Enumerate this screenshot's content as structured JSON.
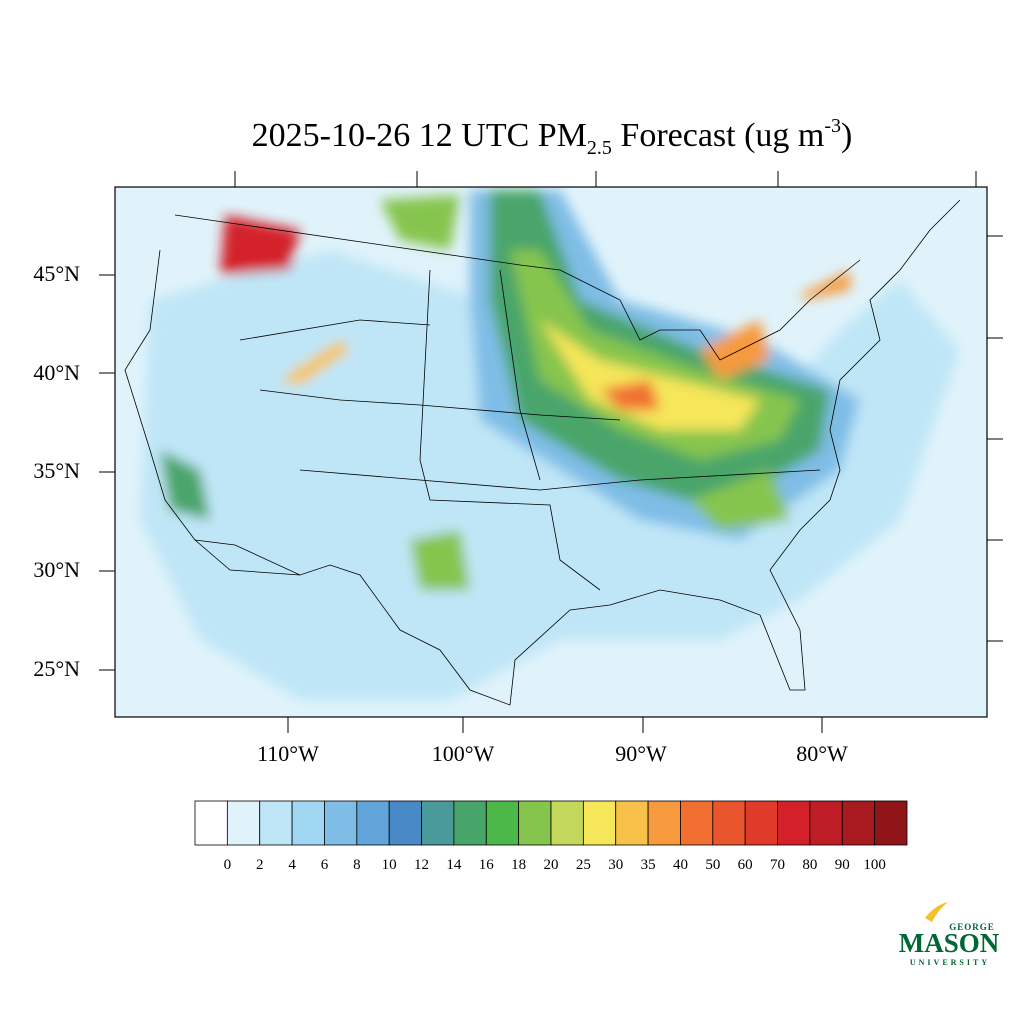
{
  "title": {
    "main": "2025-10-26 12 UTC PM",
    "sub": "2.5",
    "rest": " Forecast (ug m",
    "sup": "-3",
    "end": ")"
  },
  "lat_labels": [
    "45°N",
    "40°N",
    "35°N",
    "30°N",
    "25°N"
  ],
  "lon_labels": [
    "110°W",
    "100°W",
    "90°W",
    "80°W"
  ],
  "colorbar": {
    "levels": [
      0,
      2,
      4,
      6,
      8,
      10,
      12,
      14,
      16,
      18,
      20,
      25,
      30,
      35,
      40,
      50,
      60,
      70,
      80,
      90,
      100
    ],
    "colors": [
      "#ffffff",
      "#e0f3fb",
      "#bfe6f7",
      "#9fd6f2",
      "#7fbde6",
      "#62a5da",
      "#4a89c8",
      "#4a9a9c",
      "#48a56a",
      "#4db84a",
      "#86c54d",
      "#c3d75a",
      "#f6e65a",
      "#f8c24a",
      "#f79a3e",
      "#f06f31",
      "#e9562e",
      "#e03a2a",
      "#d42129",
      "#be1d25",
      "#a81a20",
      "#8f1519"
    ]
  },
  "logo": {
    "top": "GEORGE",
    "main": "MASON",
    "bottom": "UNIVERSITY"
  }
}
